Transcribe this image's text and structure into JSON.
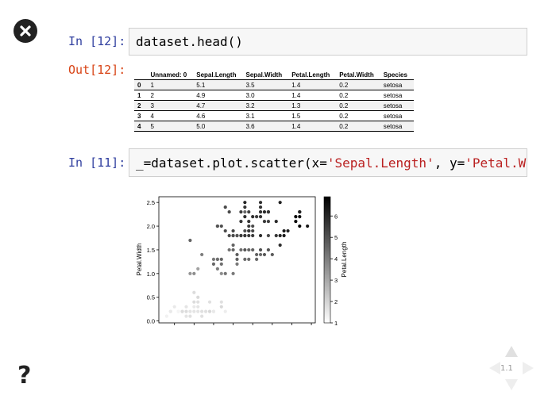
{
  "cells": [
    {
      "input_prompt": "In [12]:",
      "code": "dataset.head()",
      "output_prompt": "Out[12]:",
      "table": {
        "columns": [
          "",
          "Unnamed: 0",
          "Sepal.Length",
          "Sepal.Width",
          "Petal.Length",
          "Petal.Width",
          "Species"
        ],
        "rows": [
          [
            "0",
            "1",
            "5.1",
            "3.5",
            "1.4",
            "0.2",
            "setosa"
          ],
          [
            "1",
            "2",
            "4.9",
            "3.0",
            "1.4",
            "0.2",
            "setosa"
          ],
          [
            "2",
            "3",
            "4.7",
            "3.2",
            "1.3",
            "0.2",
            "setosa"
          ],
          [
            "3",
            "4",
            "4.6",
            "3.1",
            "1.5",
            "0.2",
            "setosa"
          ],
          [
            "4",
            "5",
            "5.0",
            "3.6",
            "1.4",
            "0.2",
            "setosa"
          ]
        ]
      }
    },
    {
      "input_prompt": "In [11]:",
      "code_parts": [
        "_=dataset.plot.scatter(x=",
        "'Sepal.Length'",
        ", y=",
        "'Petal.Width"
      ]
    }
  ],
  "chart_data": {
    "type": "scatter",
    "ylabel": "Petal.Width",
    "colorbar_label": "Petal.Length",
    "xlim": [
      4.1,
      8.1
    ],
    "ylim": [
      -0.04,
      2.62
    ],
    "yticks": [
      "0.0",
      "0.5",
      "1.0",
      "1.5",
      "2.0",
      "2.5"
    ],
    "colorbar_ticks": [
      "1",
      "2",
      "3",
      "4",
      "5",
      "6"
    ],
    "colorbar_range": [
      1.0,
      6.9
    ],
    "points": [
      [
        4.3,
        0.1,
        1.1
      ],
      [
        4.4,
        0.2,
        1.4
      ],
      [
        4.4,
        0.2,
        1.3
      ],
      [
        4.5,
        0.3,
        1.3
      ],
      [
        4.6,
        0.2,
        1.4
      ],
      [
        4.6,
        0.2,
        1.0
      ],
      [
        4.7,
        0.2,
        1.3
      ],
      [
        4.7,
        0.2,
        1.6
      ],
      [
        4.8,
        0.2,
        1.6
      ],
      [
        4.8,
        0.1,
        1.4
      ],
      [
        4.8,
        0.3,
        1.4
      ],
      [
        4.9,
        0.1,
        1.5
      ],
      [
        4.9,
        0.2,
        1.4
      ],
      [
        5.0,
        0.2,
        1.4
      ],
      [
        5.0,
        0.4,
        1.6
      ],
      [
        5.0,
        0.6,
        1.6
      ],
      [
        5.0,
        0.3,
        1.3
      ],
      [
        5.1,
        0.2,
        1.4
      ],
      [
        5.1,
        0.4,
        1.5
      ],
      [
        5.1,
        0.3,
        1.4
      ],
      [
        5.1,
        0.5,
        1.7
      ],
      [
        5.2,
        0.2,
        1.5
      ],
      [
        5.2,
        0.1,
        1.5
      ],
      [
        5.3,
        0.2,
        1.5
      ],
      [
        5.4,
        0.2,
        1.7
      ],
      [
        5.4,
        0.4,
        1.5
      ],
      [
        5.5,
        0.2,
        1.4
      ],
      [
        5.5,
        0.2,
        1.3
      ],
      [
        5.7,
        0.3,
        1.7
      ],
      [
        5.7,
        0.4,
        1.5
      ],
      [
        5.8,
        0.2,
        1.2
      ],
      [
        4.9,
        1.0,
        3.3
      ],
      [
        5.0,
        1.0,
        3.5
      ],
      [
        5.1,
        1.1,
        3.0
      ],
      [
        5.2,
        1.4,
        3.9
      ],
      [
        5.5,
        1.3,
        4.0
      ],
      [
        5.5,
        1.2,
        4.4
      ],
      [
        5.6,
        1.3,
        3.6
      ],
      [
        5.6,
        1.3,
        4.2
      ],
      [
        5.6,
        1.1,
        3.9
      ],
      [
        5.7,
        1.3,
        4.5
      ],
      [
        5.7,
        1.2,
        4.2
      ],
      [
        5.7,
        1.0,
        3.5
      ],
      [
        5.8,
        1.0,
        4.1
      ],
      [
        5.9,
        1.5,
        4.2
      ],
      [
        6.0,
        1.0,
        4.0
      ],
      [
        6.0,
        1.6,
        4.5
      ],
      [
        6.0,
        1.5,
        4.5
      ],
      [
        6.1,
        1.4,
        4.7
      ],
      [
        6.1,
        1.2,
        4.0
      ],
      [
        6.1,
        1.3,
        4.6
      ],
      [
        6.2,
        1.5,
        4.3
      ],
      [
        6.3,
        1.5,
        4.9
      ],
      [
        6.3,
        1.3,
        4.4
      ],
      [
        6.4,
        1.5,
        4.5
      ],
      [
        6.4,
        1.3,
        4.3
      ],
      [
        6.5,
        1.5,
        4.6
      ],
      [
        6.6,
        1.3,
        4.4
      ],
      [
        6.6,
        1.4,
        4.6
      ],
      [
        6.7,
        1.4,
        4.4
      ],
      [
        6.7,
        1.5,
        5.0
      ],
      [
        6.8,
        1.4,
        4.8
      ],
      [
        6.9,
        1.5,
        4.9
      ],
      [
        7.0,
        1.4,
        4.7
      ],
      [
        6.1,
        1.8,
        4.8
      ],
      [
        4.9,
        1.7,
        4.5
      ],
      [
        5.6,
        2.0,
        4.9
      ],
      [
        5.7,
        2.0,
        5.0
      ],
      [
        5.8,
        2.4,
        5.1
      ],
      [
        5.8,
        1.9,
        5.1
      ],
      [
        5.9,
        1.8,
        5.1
      ],
      [
        6.0,
        1.8,
        4.8
      ],
      [
        6.0,
        1.8,
        5.1
      ],
      [
        6.1,
        1.8,
        4.9
      ],
      [
        6.2,
        1.8,
        4.8
      ],
      [
        6.3,
        1.8,
        4.9
      ],
      [
        6.3,
        2.5,
        6.0
      ],
      [
        6.3,
        1.8,
        5.6
      ],
      [
        6.3,
        2.3,
        4.4
      ],
      [
        6.3,
        1.9,
        5.0
      ],
      [
        6.4,
        2.3,
        5.3
      ],
      [
        6.4,
        2.1,
        5.6
      ],
      [
        6.4,
        1.9,
        5.3
      ],
      [
        6.4,
        1.8,
        5.5
      ],
      [
        6.5,
        2.0,
        5.1
      ],
      [
        6.5,
        2.2,
        5.8
      ],
      [
        6.5,
        1.8,
        5.5
      ],
      [
        6.7,
        2.5,
        5.8
      ],
      [
        6.7,
        2.3,
        5.7
      ],
      [
        6.7,
        2.4,
        5.6
      ],
      [
        6.7,
        1.8,
        5.8
      ],
      [
        6.8,
        2.1,
        5.5
      ],
      [
        6.8,
        2.3,
        5.9
      ],
      [
        6.9,
        2.3,
        5.7
      ],
      [
        6.9,
        2.1,
        5.4
      ],
      [
        6.9,
        1.8,
        5.1
      ],
      [
        7.1,
        2.1,
        5.9
      ],
      [
        7.2,
        2.5,
        6.1
      ],
      [
        7.2,
        1.8,
        6.0
      ],
      [
        7.3,
        1.8,
        6.3
      ],
      [
        7.2,
        1.6,
        5.8
      ],
      [
        7.4,
        1.9,
        6.1
      ],
      [
        7.6,
        2.1,
        6.6
      ],
      [
        7.7,
        2.3,
        6.7
      ],
      [
        7.7,
        2.2,
        6.7
      ],
      [
        7.7,
        2.0,
        6.9
      ],
      [
        7.9,
        2.0,
        6.4
      ],
      [
        7.7,
        2.3,
        6.1
      ],
      [
        7.6,
        2.2,
        6.9
      ],
      [
        7.1,
        1.8,
        5.6
      ],
      [
        7.3,
        1.9,
        6.3
      ],
      [
        5.6,
        2.0,
        4.9
      ],
      [
        5.9,
        2.3,
        5.1
      ],
      [
        6.2,
        2.3,
        5.4
      ],
      [
        6.4,
        2.0,
        5.5
      ],
      [
        6.6,
        2.2,
        5.4
      ],
      [
        6.2,
        2.1,
        5.6
      ],
      [
        6.3,
        2.4,
        5.6
      ],
      [
        6.9,
        2.3,
        5.6
      ],
      [
        6.7,
        2.2,
        5.6
      ],
      [
        6.0,
        1.9,
        5.2
      ],
      [
        6.2,
        1.8,
        5.5
      ],
      [
        6.4,
        1.9,
        5.6
      ],
      [
        6.3,
        2.2,
        5.8
      ],
      [
        6.5,
        1.9,
        5.2
      ]
    ]
  },
  "nav": {
    "slide_number": "1.1"
  }
}
